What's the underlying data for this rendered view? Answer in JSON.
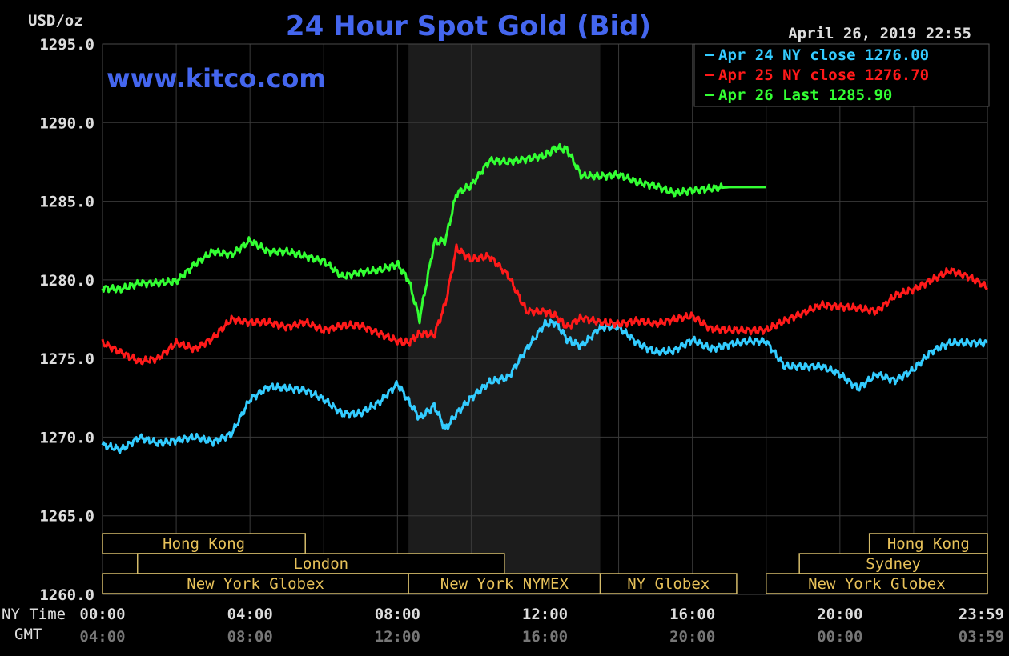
{
  "chart_data": {
    "type": "line",
    "title": "24 Hour Spot Gold (Bid)",
    "ylabel": "USD/oz",
    "watermark": "www.kitco.com",
    "timestamp": "April 26, 2019 22:55",
    "ylim": [
      1260,
      1295
    ],
    "yticks": [
      "1295.0",
      "1290.0",
      "1285.0",
      "1280.0",
      "1275.0",
      "1270.0",
      "1265.0",
      "1260.0"
    ],
    "xlim": [
      0,
      24
    ],
    "ny_time_label": "NY Time",
    "gmt_label": "GMT",
    "ny_ticks": [
      "00:00",
      "04:00",
      "08:00",
      "12:00",
      "16:00",
      "20:00",
      "23:59"
    ],
    "gmt_ticks": [
      "04:00",
      "08:00",
      "12:00",
      "16:00",
      "20:00",
      "00:00",
      "03:59"
    ],
    "grid": true,
    "shaded_hours": [
      8.3,
      13.5
    ],
    "legend": [
      {
        "label": "Apr 24 NY close 1276.00",
        "color": "#33ccff"
      },
      {
        "label": "Apr 25 NY close 1276.70",
        "color": "#ff1a1a"
      },
      {
        "label": "Apr 26 Last 1285.90",
        "color": "#33ff33"
      }
    ],
    "legend_position": "top-right",
    "series": [
      {
        "color": "#33ccff",
        "x": [
          0,
          0.5,
          1,
          1.5,
          2,
          2.5,
          3,
          3.5,
          4,
          4.5,
          5,
          5.5,
          6,
          6.5,
          7,
          7.5,
          8,
          8.3,
          8.6,
          9,
          9.3,
          9.6,
          10,
          10.5,
          11,
          11.5,
          12,
          12.3,
          12.6,
          13,
          13.5,
          14,
          14.5,
          15,
          15.5,
          16,
          16.5,
          17,
          17.5,
          18,
          18.5,
          19,
          19.5,
          20,
          20.5,
          21,
          21.5,
          22,
          22.5,
          23,
          23.5,
          24
        ],
        "values": [
          1269.5,
          1269.2,
          1270.0,
          1269.6,
          1269.8,
          1270.0,
          1269.7,
          1270.2,
          1272.4,
          1273.2,
          1273.1,
          1273.0,
          1272.4,
          1271.5,
          1271.5,
          1272.2,
          1273.4,
          1272.3,
          1271.2,
          1272.0,
          1270.5,
          1271.5,
          1272.5,
          1273.5,
          1273.8,
          1275.6,
          1277.2,
          1277.3,
          1276.2,
          1275.8,
          1277.0,
          1277.0,
          1276.0,
          1275.4,
          1275.5,
          1276.2,
          1275.6,
          1275.9,
          1276.1,
          1276.1,
          1274.5,
          1274.5,
          1274.5,
          1274.0,
          1273.1,
          1274.0,
          1273.6,
          1274.3,
          1275.5,
          1276.0,
          1276.0,
          1276.0
        ]
      },
      {
        "color": "#ff1a1a",
        "x": [
          0,
          0.5,
          1,
          1.5,
          2,
          2.5,
          3,
          3.5,
          4,
          4.5,
          5,
          5.5,
          6,
          6.5,
          7,
          7.5,
          8,
          8.3,
          8.6,
          9,
          9.3,
          9.6,
          10,
          10.5,
          11,
          11.5,
          12,
          12.3,
          12.6,
          13,
          13.5,
          14,
          14.5,
          15,
          15.5,
          16,
          16.5,
          17,
          17.5,
          18,
          18.5,
          19,
          19.5,
          20,
          20.5,
          21,
          21.5,
          22,
          22.5,
          23,
          23.5,
          24
        ],
        "values": [
          1276.0,
          1275.4,
          1274.8,
          1275.0,
          1276.0,
          1275.6,
          1276.3,
          1277.5,
          1277.3,
          1277.3,
          1277.0,
          1277.3,
          1276.8,
          1277.1,
          1277.1,
          1276.6,
          1276.1,
          1276.0,
          1276.6,
          1276.5,
          1278.5,
          1282.0,
          1281.3,
          1281.5,
          1280.3,
          1278.0,
          1278.0,
          1277.7,
          1277.0,
          1277.6,
          1277.3,
          1277.2,
          1277.4,
          1277.2,
          1277.5,
          1277.7,
          1276.9,
          1276.8,
          1276.8,
          1276.8,
          1277.4,
          1277.9,
          1278.4,
          1278.3,
          1278.2,
          1278.0,
          1279.0,
          1279.4,
          1280.0,
          1280.6,
          1280.2,
          1279.5
        ]
      },
      {
        "color": "#33ff33",
        "x": [
          0,
          0.5,
          1,
          1.5,
          2,
          2.5,
          3,
          3.5,
          4,
          4.5,
          5,
          5.5,
          6,
          6.5,
          7,
          7.5,
          8,
          8.3,
          8.6,
          9,
          9.3,
          9.6,
          10,
          10.5,
          11,
          11.5,
          12,
          12.3,
          12.6,
          13,
          13.5,
          14,
          14.5,
          15,
          15.5,
          16,
          16.5,
          17,
          17.5,
          18
        ],
        "values": [
          1279.5,
          1279.4,
          1279.8,
          1279.8,
          1279.9,
          1281.0,
          1281.8,
          1281.6,
          1282.5,
          1281.8,
          1281.8,
          1281.5,
          1281.2,
          1280.2,
          1280.5,
          1280.6,
          1281.0,
          1280.0,
          1277.5,
          1282.4,
          1282.5,
          1285.5,
          1286.0,
          1287.6,
          1287.5,
          1287.7,
          1287.9,
          1288.4,
          1288.3,
          1286.6,
          1286.6,
          1286.7,
          1286.2,
          1286.0,
          1285.5,
          1285.7,
          1285.8,
          1285.9,
          1285.9,
          1285.9
        ]
      }
    ],
    "market_sessions": [
      {
        "label": "Hong Kong",
        "row": 0,
        "start": 0,
        "end": 5.5
      },
      {
        "label": "Hong Kong",
        "row": 0,
        "start": 20.8,
        "end": 24
      },
      {
        "label": "London",
        "row": 1,
        "start": 0.95,
        "end": 10.9
      },
      {
        "label": "Sydney",
        "row": 1,
        "start": 18.9,
        "end": 24
      },
      {
        "label": "New York Globex",
        "row": 2,
        "start": 0,
        "end": 8.3
      },
      {
        "label": "New York NYMEX",
        "row": 2,
        "start": 8.3,
        "end": 13.5
      },
      {
        "label": "NY Globex",
        "row": 2,
        "start": 13.5,
        "end": 17.2
      },
      {
        "label": "New York Globex",
        "row": 2,
        "start": 18.0,
        "end": 24
      }
    ],
    "colors": {
      "background": "#000000",
      "grid": "#3a3a3a",
      "shade": "#1c1c1c",
      "title": "#4466ee",
      "axis_text": "#dddddd",
      "gmt_text": "#777777",
      "session_border": "#d4bb6a",
      "session_text": "#e8c25a"
    }
  }
}
